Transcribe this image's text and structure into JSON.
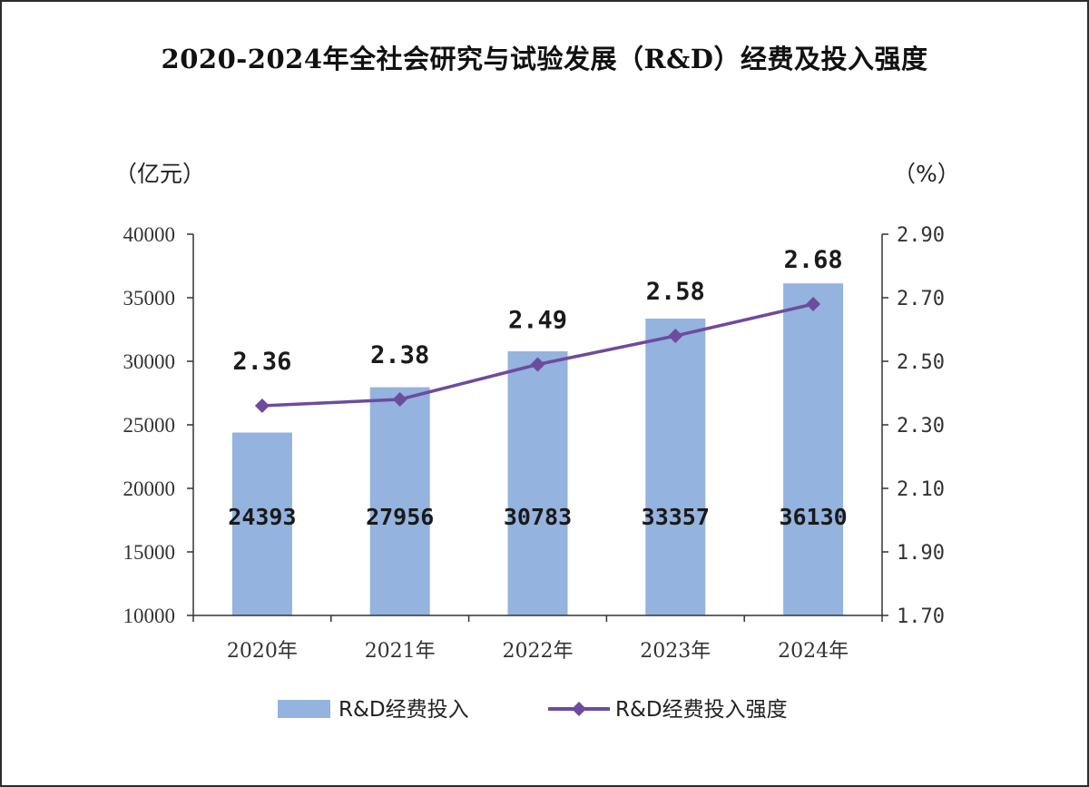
{
  "title": "2020-2024年全社会研究与试验发展（R&D）经费及投入强度",
  "units": {
    "left": "（亿元）",
    "right": "（%）"
  },
  "colors": {
    "bar": "#94b3de",
    "line": "#6e4b9e",
    "axis": "#333333"
  },
  "chart_data": {
    "type": "bar",
    "categories": [
      "2020年",
      "2021年",
      "2022年",
      "2023年",
      "2024年"
    ],
    "series": [
      {
        "name": "R&D经费投入",
        "type": "bar",
        "axis": "left",
        "values": [
          24393,
          27956,
          30783,
          33357,
          36130
        ],
        "labels": [
          "24393",
          "27956",
          "30783",
          "33357",
          "36130"
        ]
      },
      {
        "name": "R&D经费投入强度",
        "type": "line",
        "axis": "right",
        "values": [
          2.36,
          2.38,
          2.49,
          2.58,
          2.68
        ],
        "labels": [
          "2.36",
          "2.38",
          "2.49",
          "2.58",
          "2.68"
        ]
      }
    ],
    "left_axis": {
      "min": 10000,
      "max": 40000,
      "ticks": [
        "10000",
        "15000",
        "20000",
        "25000",
        "30000",
        "35000",
        "40000"
      ]
    },
    "right_axis": {
      "min": 1.7,
      "max": 2.9,
      "ticks": [
        "1.70",
        "1.90",
        "2.10",
        "2.30",
        "2.50",
        "2.70",
        "2.90"
      ]
    },
    "grid": false,
    "legend_position": "bottom"
  }
}
